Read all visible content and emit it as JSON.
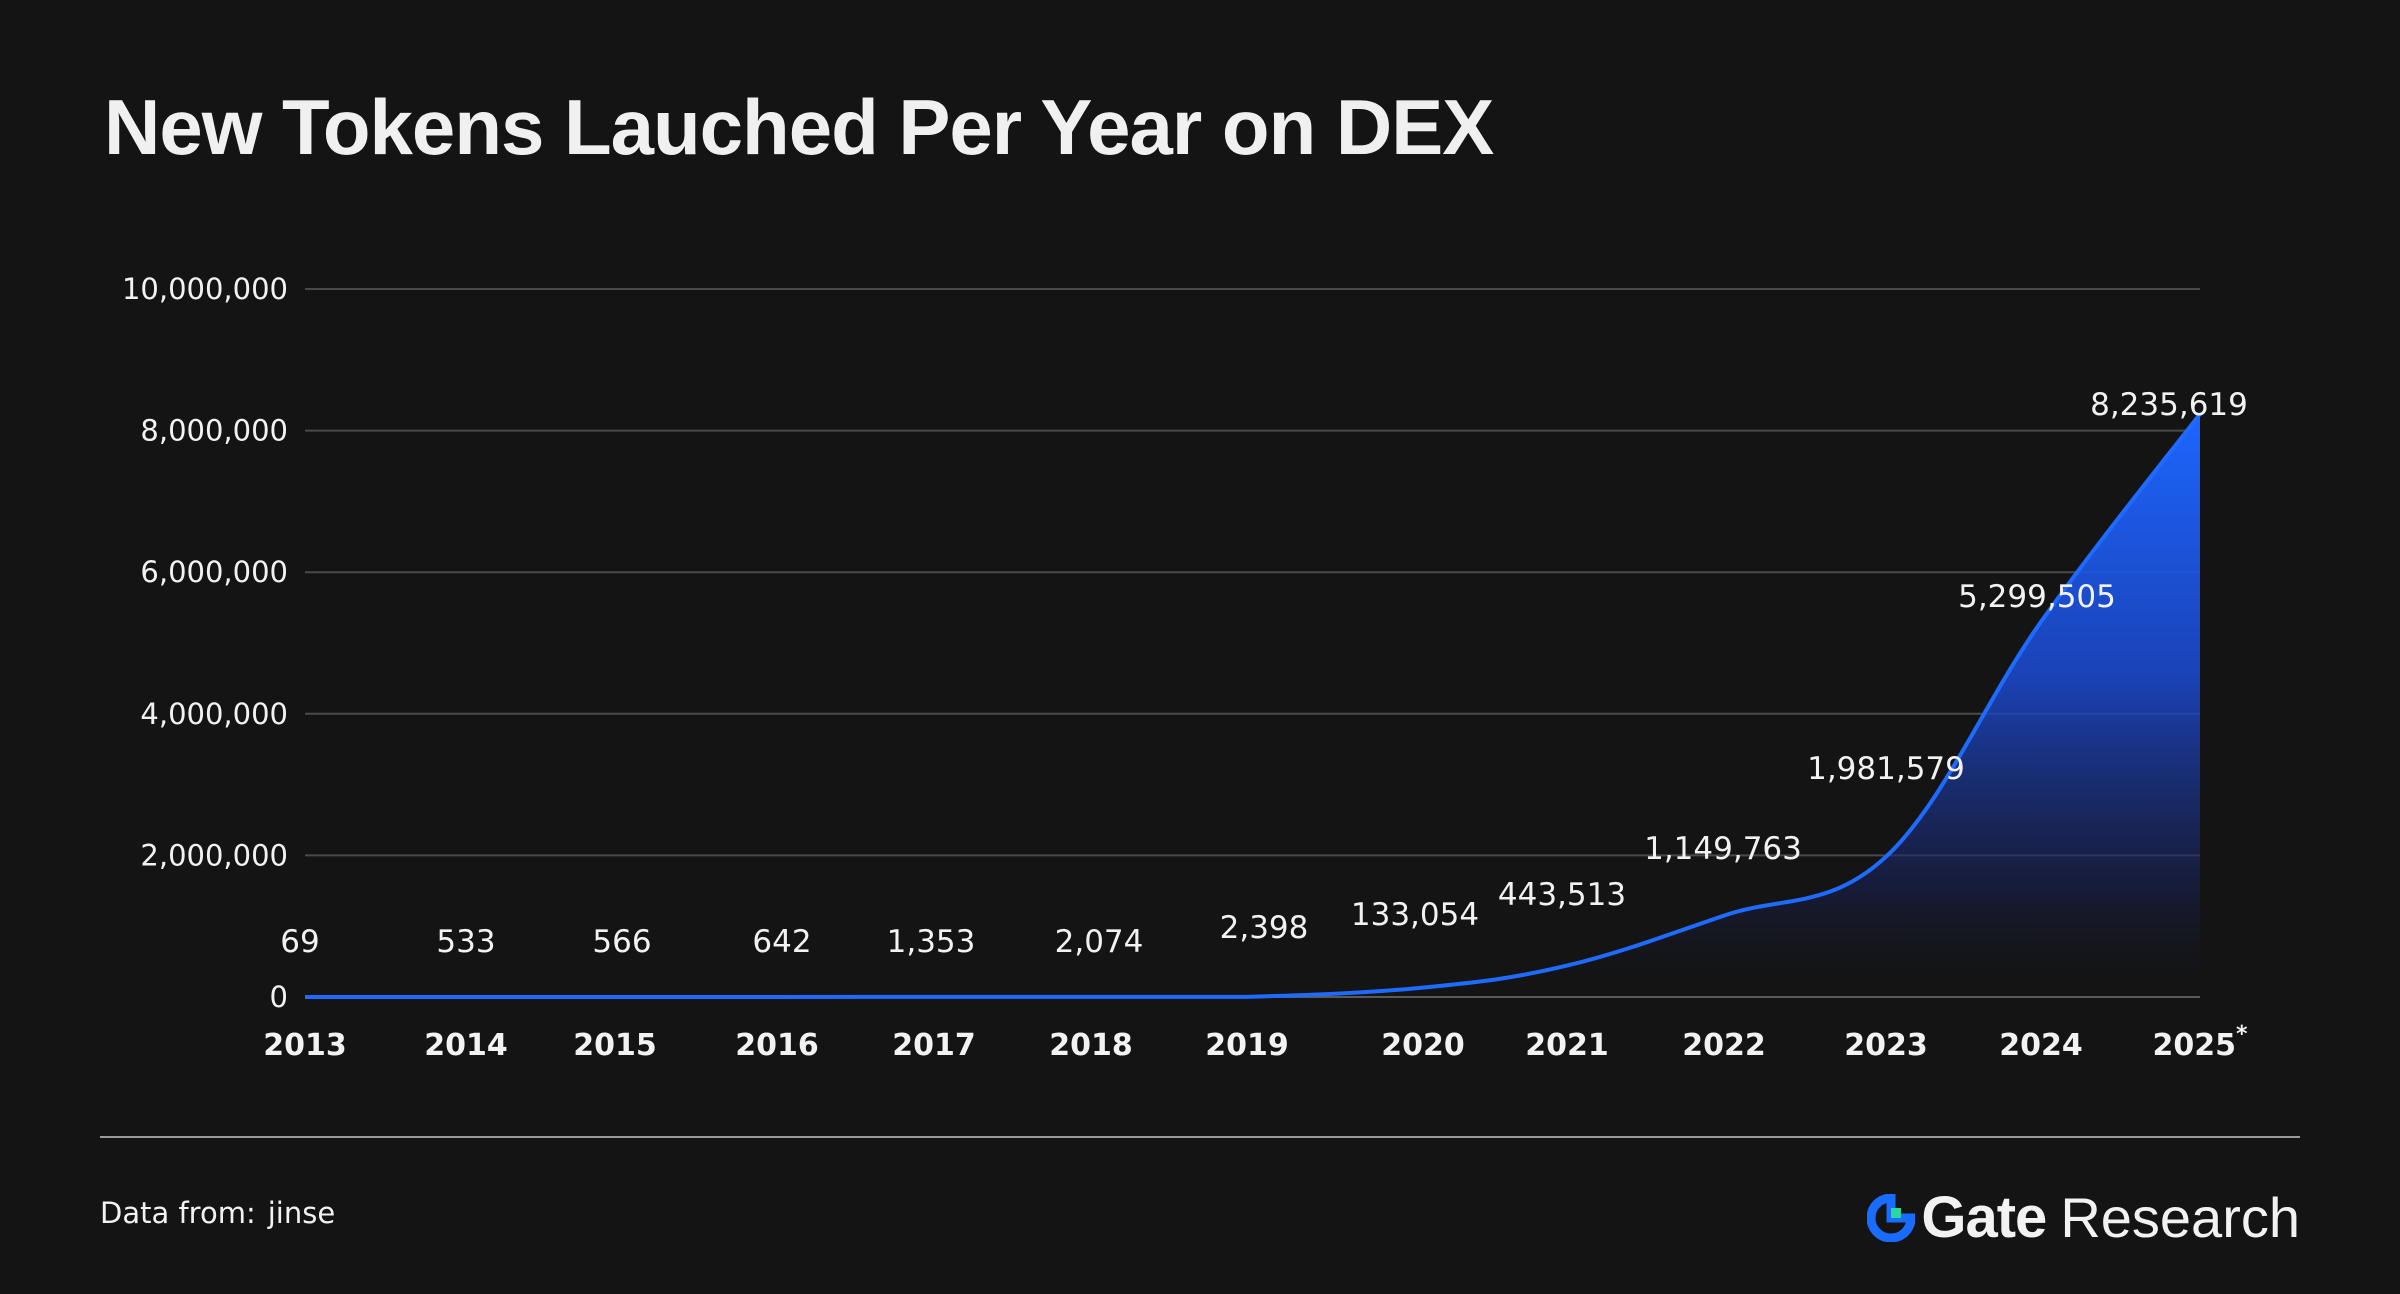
{
  "chart_data": {
    "type": "area",
    "title": "New Tokens Lauched Per Year on DEX",
    "categories": [
      "2013",
      "2014",
      "2015",
      "2016",
      "2017",
      "2018",
      "2019",
      "2020",
      "2021",
      "2022",
      "2023",
      "2024",
      "2025"
    ],
    "category_suffix_last": "*",
    "values": [
      69,
      533,
      566,
      642,
      1353,
      2074,
      2398,
      133054,
      443513,
      1149763,
      1981579,
      5299505,
      8235619
    ],
    "value_labels": [
      "69",
      "533",
      "566",
      "642",
      "1,353",
      "2,074",
      "2,398",
      "133,054",
      "443,513",
      "1,149,763",
      "1,981,579",
      "5,299,505",
      "8,235,619"
    ],
    "y_ticks": [
      0,
      2000000,
      4000000,
      6000000,
      8000000,
      10000000
    ],
    "y_tick_labels": [
      "0",
      "2,000,000",
      "4,000,000",
      "6,000,000",
      "8,000,000",
      "10,000,000"
    ],
    "ylim": [
      0,
      10000000
    ],
    "grid": true,
    "line_color": "#1f6bff",
    "fill_color": "#1a5cff"
  },
  "footer": {
    "source_prefix": "Data from:",
    "source_name": "jinse",
    "brand_name": "Gate",
    "brand_suffix": "Research",
    "brand_color": "#1a6bff",
    "brand_icon": "gate-logo-icon"
  }
}
